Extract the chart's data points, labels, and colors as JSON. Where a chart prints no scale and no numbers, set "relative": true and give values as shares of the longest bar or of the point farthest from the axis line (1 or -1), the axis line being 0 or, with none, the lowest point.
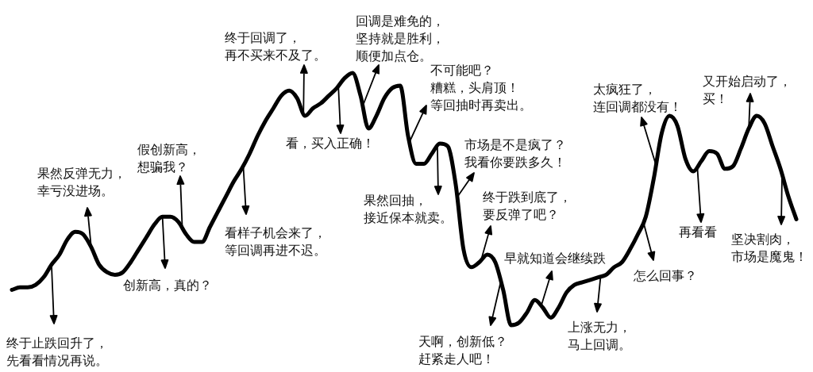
{
  "chart_data": {
    "type": "line",
    "relative": true,
    "categories": [
      null,
      null,
      null,
      null,
      null,
      null,
      null,
      null,
      null,
      null,
      null,
      null,
      null,
      null,
      null,
      null,
      null,
      null,
      null,
      null,
      null,
      null,
      null,
      null,
      null,
      null,
      null,
      null,
      null,
      null,
      null,
      null,
      null,
      null,
      null,
      null,
      null,
      null,
      null,
      null,
      null,
      null,
      null,
      null,
      null,
      null,
      null,
      null,
      null,
      null,
      null,
      null,
      null,
      null,
      null,
      null,
      null,
      null,
      null,
      null,
      null,
      null,
      null,
      null,
      null,
      null,
      null,
      null,
      null,
      null,
      null,
      null,
      null,
      null,
      null,
      null,
      null,
      null,
      null,
      null,
      null,
      null,
      null,
      null,
      null,
      null,
      null,
      null,
      null,
      null,
      null,
      null,
      null,
      null,
      null,
      null,
      null,
      null,
      null,
      null
    ],
    "series": [
      {
        "color": "#000000",
        "values": [
          0.14,
          0.15,
          0.15,
          0.16,
          0.19,
          0.24,
          0.28,
          0.34,
          0.37,
          0.36,
          0.31,
          0.24,
          0.21,
          0.2,
          0.21,
          0.25,
          0.3,
          0.35,
          0.4,
          0.43,
          0.43,
          0.41,
          0.36,
          0.33,
          0.33,
          0.39,
          0.45,
          0.51,
          0.57,
          0.62,
          0.68,
          0.75,
          0.81,
          0.86,
          0.91,
          0.93,
          0.9,
          0.83,
          0.86,
          0.88,
          0.91,
          0.94,
          0.98,
          1,
          0.91,
          0.78,
          0.83,
          0.9,
          0.94,
          0.95,
          0.75,
          0.64,
          0.64,
          0.68,
          0.72,
          0.71,
          0.56,
          0.3,
          0.23,
          0.25,
          0.28,
          0.25,
          0.14,
          0,
          0.01,
          0.05,
          0.1,
          0.07,
          0.03,
          0.07,
          0.13,
          0.16,
          0.17,
          0.18,
          0.19,
          0.2,
          0.23,
          0.25,
          0.3,
          0.36,
          0.43,
          0.58,
          0.76,
          0.83,
          0.79,
          0.66,
          0.61,
          0.65,
          0.69,
          0.68,
          0.62,
          0.63,
          0.7,
          0.78,
          0.83,
          0.8,
          0.71,
          0.62,
          0.51,
          0.42
        ]
      }
    ],
    "annotations": [
      "终于止跌回升了，先看看情况再说。",
      "果然反弹无力，幸亏没进场。",
      "创新高，真的？",
      "假创新高，想骗我？",
      "看样子机会来了，等回调再进不迟。",
      "终于回调了，再不买来不及了。",
      "看，买入正确！",
      "回调是难免的，坚持就是胜利，顺便加点仓。",
      "不可能吧？糟糕，头肩顶！等回抽时再卖出。",
      "果然回抽，接近保本就卖。",
      "市场是不是疯了？我看你要跌多久！",
      "终于跌到底了，要反弹了吧？",
      "天啊，创新低？赶紧走人吧！",
      "早就知道会继续跌",
      "上涨无力，马上回调。",
      "怎么回事？",
      "太疯狂了，连回调都没有！",
      "再看看",
      "又开始启动了，买！",
      "坚决割肉，市场是魔鬼！"
    ]
  }
}
